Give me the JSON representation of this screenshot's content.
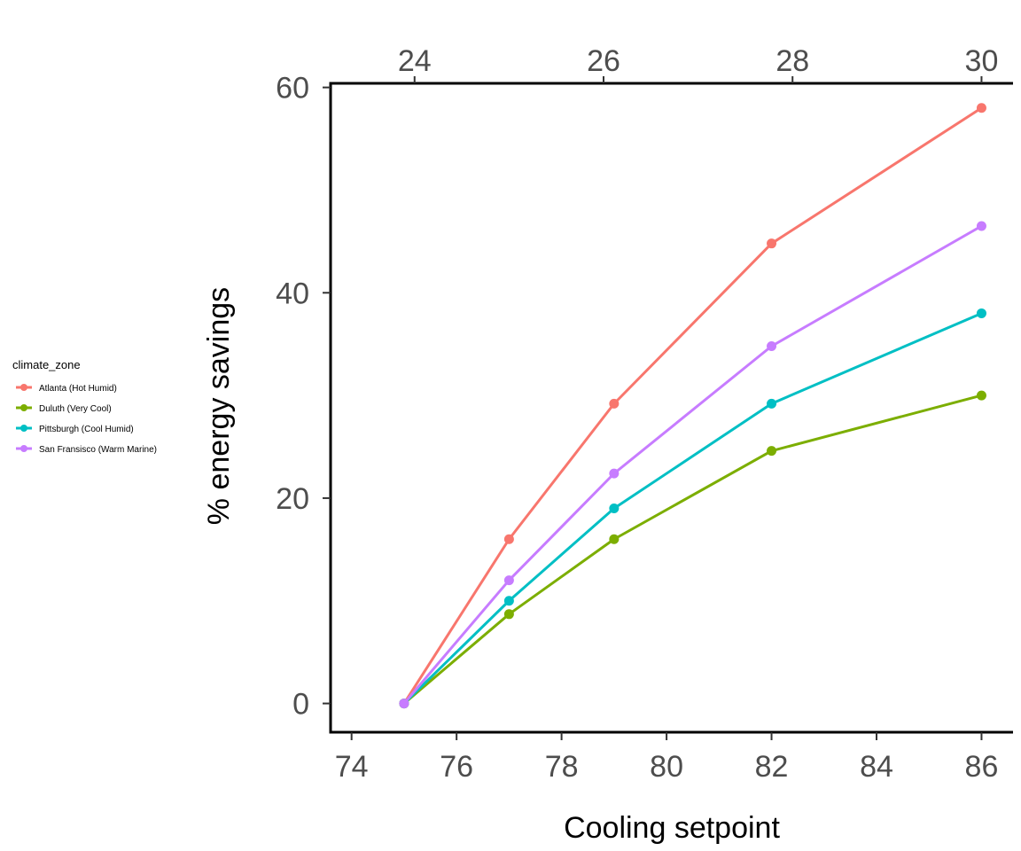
{
  "chart_data": {
    "type": "line",
    "x": [
      75,
      77,
      79,
      82,
      86
    ],
    "series": [
      {
        "name": "Atlanta (Hot Humid)",
        "color": "#F8766D",
        "values": [
          0,
          16,
          29.2,
          44.8,
          58
        ]
      },
      {
        "name": "Duluth (Very Cool)",
        "color": "#7CAE00",
        "values": [
          0,
          8.7,
          16,
          24.6,
          30
        ]
      },
      {
        "name": "Pittsburgh (Cool Humid)",
        "color": "#00BFC4",
        "values": [
          0,
          10,
          19,
          29.2,
          38
        ]
      },
      {
        "name": "San Fransisco (Warm Marine)",
        "color": "#C77CFF",
        "values": [
          0,
          12,
          22.4,
          34.8,
          46.5
        ]
      }
    ],
    "xlabel": "Cooling setpoint",
    "ylabel": "% energy savings",
    "xlim": [
      73.6,
      86.6
    ],
    "ylim": [
      -2.8,
      60.4
    ],
    "xticks": [
      74,
      76,
      78,
      80,
      82,
      84,
      86
    ],
    "yticks": [
      0,
      20,
      40,
      60
    ],
    "secondary_x_ticks": [
      24,
      26,
      28,
      30
    ],
    "secondary_x_note": "Celsius scale on top axis",
    "legend_title": "climate_zone",
    "legend_position": "left",
    "grid": false
  }
}
